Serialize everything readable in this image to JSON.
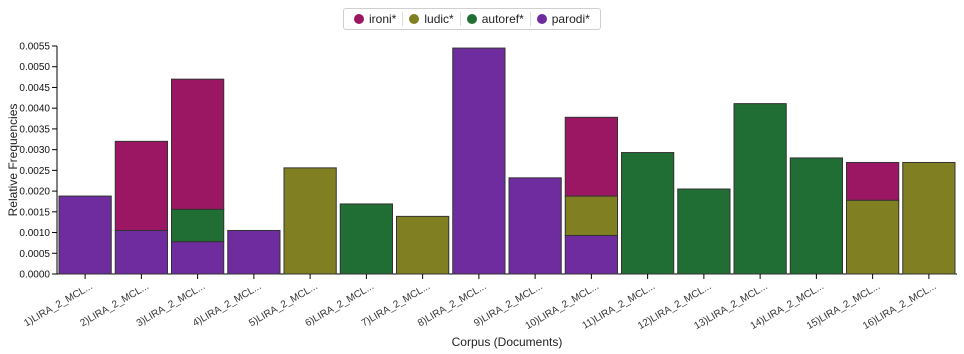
{
  "chart_data": {
    "type": "bar",
    "stacked": true,
    "xlabel": "Corpus (Documents)",
    "ylabel": "Relative Frequencies",
    "ylim": [
      0,
      0.0055
    ],
    "yticks": [
      "0.0000",
      "0.0005",
      "0.0010",
      "0.0015",
      "0.0020",
      "0.0025",
      "0.0030",
      "0.0035",
      "0.0040",
      "0.0045",
      "0.0050",
      "0.0055"
    ],
    "categories": [
      "1)LIRA_2_MCL...",
      "2)LIRA_2_MCL...",
      "3)LIRA_2_MCL...",
      "4)LIRA_2_MCL...",
      "5)LIRA_2_MCL...",
      "6)LIRA_2_MCL...",
      "7)LIRA_2_MCL...",
      "8)LIRA_2_MCL...",
      "9)LIRA_2_MCL...",
      "10)LIRA_2_MCL...",
      "11)LIRA_2_MCL...",
      "12)LIRA_2_MCL...",
      "13)LIRA_2_MCL...",
      "14)LIRA_2_MCL...",
      "15)LIRA_2_MCL...",
      "16)LIRA_2_MCL..."
    ],
    "legend_position": "top-center",
    "series": [
      {
        "name": "parodi*",
        "color": "#6f2c9e",
        "values": [
          0.00188,
          0.00105,
          0.00078,
          0.00105,
          0,
          0,
          0,
          0.00545,
          0.00232,
          0.00093,
          0,
          0,
          0,
          0,
          0,
          0
        ]
      },
      {
        "name": "autoref*",
        "color": "#216e35",
        "values": [
          0,
          0,
          0.00078,
          0,
          0,
          0.00169,
          0,
          0,
          0,
          0,
          0.00293,
          0.00205,
          0.00411,
          0.0028,
          0,
          0
        ]
      },
      {
        "name": "ludic*",
        "color": "#808022",
        "values": [
          0,
          0,
          0,
          0,
          0.00256,
          0,
          0.00139,
          0,
          0,
          0.00095,
          0,
          0,
          0,
          0,
          0.00178,
          0.00269
        ]
      },
      {
        "name": "ironi*",
        "color": "#9c1763",
        "values": [
          0,
          0.00215,
          0.00314,
          0,
          0,
          0,
          0,
          0,
          0,
          0.0019,
          0,
          0,
          0,
          0,
          0.00091,
          0
        ]
      }
    ],
    "legend_order": [
      "ironi*",
      "ludic*",
      "autoref*",
      "parodi*"
    ]
  }
}
